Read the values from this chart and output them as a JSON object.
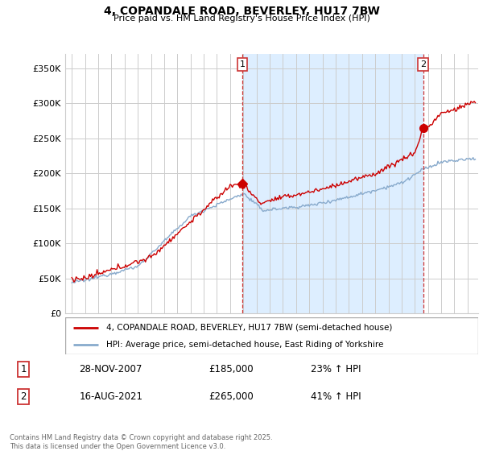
{
  "title1": "4, COPANDALE ROAD, BEVERLEY, HU17 7BW",
  "title2": "Price paid vs. HM Land Registry's House Price Index (HPI)",
  "ylabel_ticks": [
    "£0",
    "£50K",
    "£100K",
    "£150K",
    "£200K",
    "£250K",
    "£300K",
    "£350K"
  ],
  "ytick_vals": [
    0,
    50000,
    100000,
    150000,
    200000,
    250000,
    300000,
    350000
  ],
  "ylim": [
    0,
    370000
  ],
  "xlim_start": 1994.5,
  "xlim_end": 2025.8,
  "vline1_x": 2007.92,
  "vline2_x": 2021.63,
  "sale1": {
    "date": "28-NOV-2007",
    "price": 185000,
    "hpi_pct": "23% ↑ HPI",
    "label": "1"
  },
  "sale2": {
    "date": "16-AUG-2021",
    "price": 265000,
    "hpi_pct": "41% ↑ HPI",
    "label": "2"
  },
  "legend_line1": "4, COPANDALE ROAD, BEVERLEY, HU17 7BW (semi-detached house)",
  "legend_line2": "HPI: Average price, semi-detached house, East Riding of Yorkshire",
  "copyright_text": "Contains HM Land Registry data © Crown copyright and database right 2025.\nThis data is licensed under the Open Government Licence v3.0.",
  "line_color_red": "#cc0000",
  "line_color_blue": "#88aacc",
  "vline_color": "#cc3333",
  "grid_color": "#cccccc",
  "shade_color": "#ddeeff",
  "background_color": "#ffffff",
  "sale1_x": 2007.917,
  "sale1_y": 185000,
  "sale2_x": 2021.625,
  "sale2_y": 265000
}
